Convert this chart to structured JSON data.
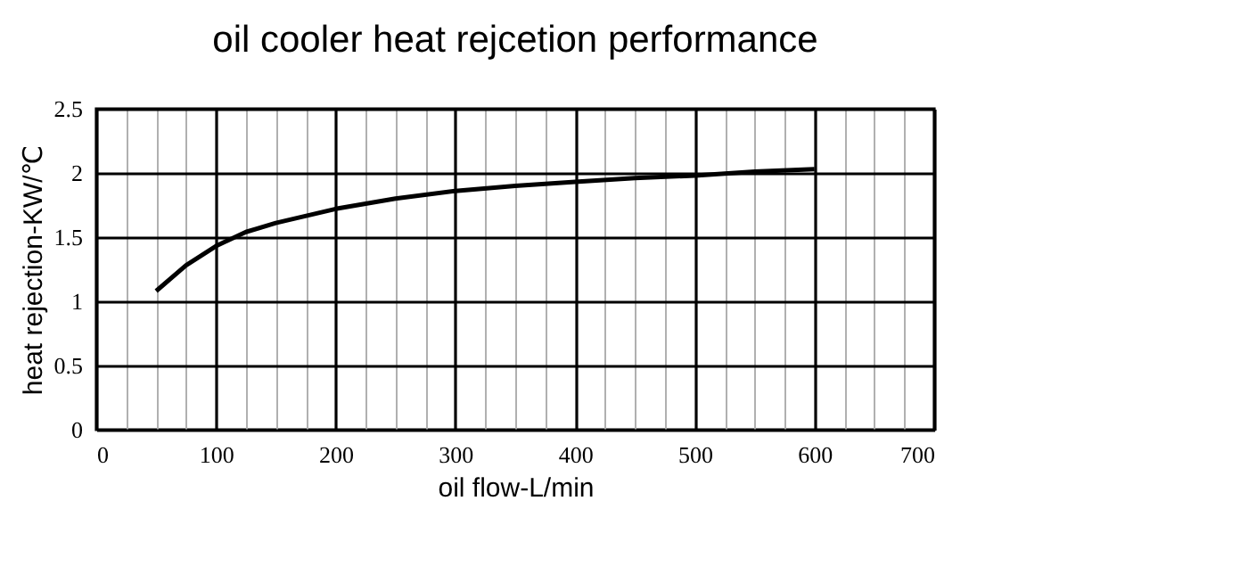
{
  "chart_data": {
    "type": "line",
    "title": "oil cooler heat rejcetion performance",
    "xlabel": "oil flow-L/min",
    "ylabel": "heat rejection-KW/℃",
    "x": [
      50,
      75,
      100,
      125,
      150,
      200,
      250,
      300,
      350,
      400,
      450,
      500,
      550,
      600
    ],
    "series": [
      {
        "color": "#000000",
        "values": [
          1.08,
          1.28,
          1.43,
          1.54,
          1.61,
          1.72,
          1.8,
          1.86,
          1.9,
          1.93,
          1.96,
          1.98,
          2.01,
          2.03
        ]
      }
    ],
    "xlim": [
      0,
      700
    ],
    "xticks": [
      0,
      {
        "value": 25,
        "label": null
      },
      {
        "value": 50,
        "label": null
      },
      {
        "value": 75,
        "label": null
      },
      100,
      {
        "value": 125,
        "label": null
      },
      {
        "value": 150,
        "label": null
      },
      {
        "value": 175,
        "label": null
      },
      200,
      {
        "value": 225,
        "label": null
      },
      {
        "value": 250,
        "label": null
      },
      {
        "value": 275,
        "label": null
      },
      300,
      {
        "value": 325,
        "label": null
      },
      {
        "value": 350,
        "label": null
      },
      {
        "value": 375,
        "label": null
      },
      400,
      {
        "value": 425,
        "label": null
      },
      {
        "value": 450,
        "label": null
      },
      {
        "value": 475,
        "label": null
      },
      500,
      {
        "value": 525,
        "label": null
      },
      {
        "value": 550,
        "label": null
      },
      {
        "value": 575,
        "label": null
      },
      600,
      {
        "value": 625,
        "label": null
      },
      {
        "value": 650,
        "label": null
      },
      {
        "value": 675,
        "label": null
      },
      700
    ],
    "ylim": [
      0,
      2.5
    ],
    "yticks": [
      0,
      0.5,
      1,
      1.5,
      2,
      2.5
    ],
    "grid": true,
    "line_style": "solid",
    "marker": "none"
  }
}
